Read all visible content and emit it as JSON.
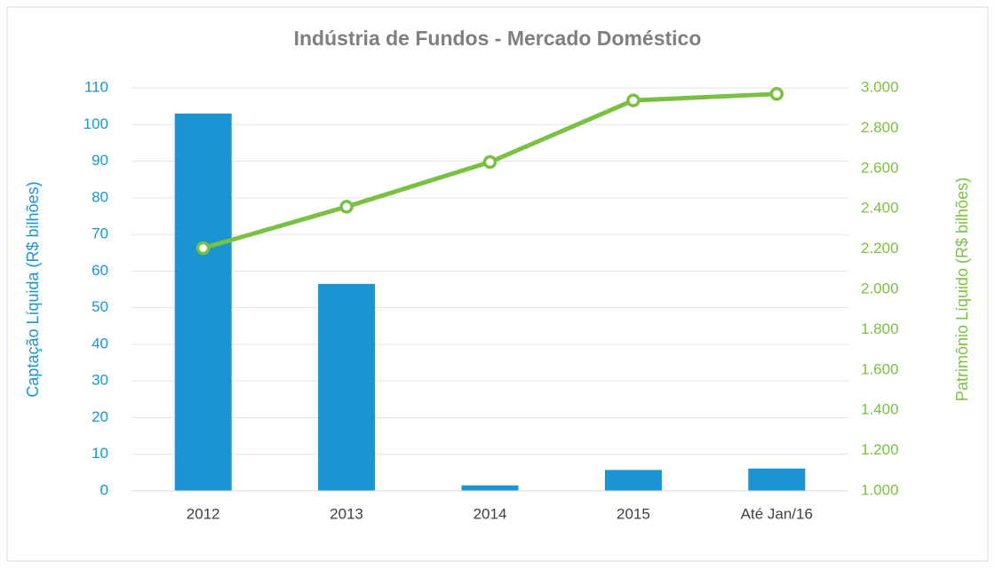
{
  "chart_data": {
    "type": "bar_line",
    "title": "Indústria de Fundos - Mercado Doméstico",
    "ylabel": "Captação Líquida (R$ bilhões)",
    "y2label": "Patrimônio Líquido (R$ bilhões)",
    "categories": [
      "2012",
      "2013",
      "2014",
      "2015",
      "Até Jan/16"
    ],
    "series": [
      {
        "type": "bar",
        "color": "#1a94d2",
        "values": [
          103,
          56.5,
          1.5,
          5.7,
          6.1
        ]
      },
      {
        "type": "line",
        "axis": "y2",
        "color": "#7ac143",
        "values": [
          2205,
          2410,
          2632,
          2938,
          2970
        ]
      }
    ],
    "ylim": [
      0,
      110
    ],
    "yticks": [
      0,
      10,
      20,
      30,
      40,
      50,
      60,
      70,
      80,
      90,
      100,
      110
    ],
    "y2lim": [
      1000,
      3000
    ],
    "y2ticks": [
      {
        "value": 1000,
        "label": "1.000"
      },
      {
        "value": 1200,
        "label": "1.200"
      },
      {
        "value": 1400,
        "label": "1.400"
      },
      {
        "value": 1600,
        "label": "1.600"
      },
      {
        "value": 1800,
        "label": "1.800"
      },
      {
        "value": 2000,
        "label": "2.000"
      },
      {
        "value": 2200,
        "label": "2.200"
      },
      {
        "value": 2400,
        "label": "2.400"
      },
      {
        "value": 2600,
        "label": "2.600"
      },
      {
        "value": 2800,
        "label": "2.800"
      },
      {
        "value": 3000,
        "label": "3.000"
      }
    ],
    "grid": true
  }
}
